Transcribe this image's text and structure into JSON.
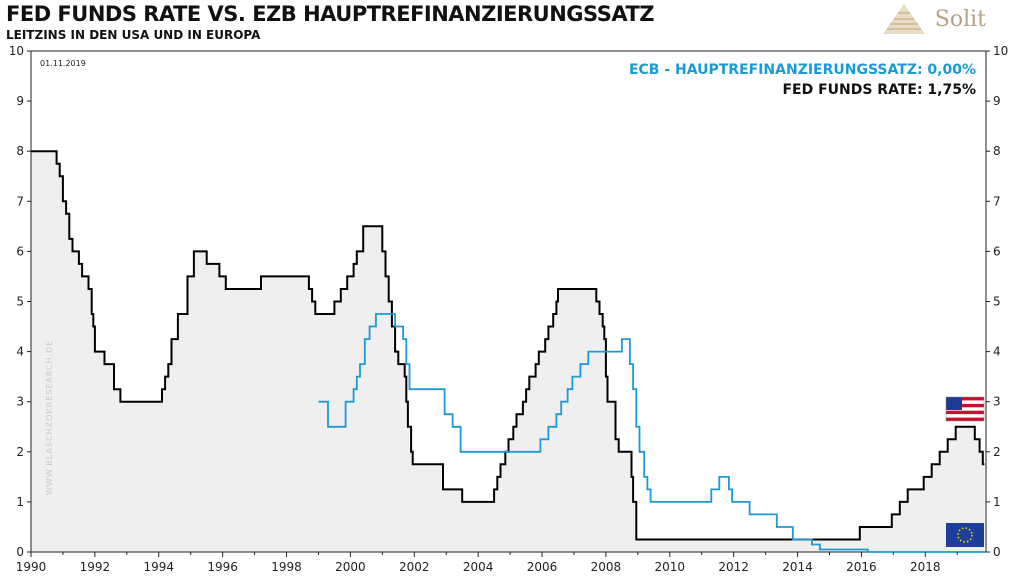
{
  "header": {
    "title": "FED FUNDS RATE  VS.  EZB HAUPTREFINANZIERUNGSSATZ",
    "subtitle": "LEITZINS IN DEN USA UND IN EUROPA",
    "logo_text": "Solit"
  },
  "date_label": "01.11.2019",
  "watermark": "WWW.BLASCHZOKRESEARCH.DE",
  "colors": {
    "fed": "#000000",
    "ecb": "#1a9ad6",
    "fill": "#efefef",
    "logo": "#b5a386"
  },
  "icons": {
    "us": "us-flag-icon",
    "eu": "eu-flag-icon"
  },
  "chart_data": {
    "type": "line",
    "xlim": [
      1990,
      2019.9
    ],
    "ylim": [
      0,
      10
    ],
    "x_ticks": [
      1990,
      1992,
      1994,
      1996,
      1998,
      2000,
      2002,
      2004,
      2006,
      2008,
      2010,
      2012,
      2014,
      2016,
      2018
    ],
    "y_ticks": [
      0,
      1,
      2,
      3,
      4,
      5,
      6,
      7,
      8,
      9,
      10
    ],
    "legend": [
      "ECB - HAUPTREFINANZIERUNGSSATZ: 0,00%",
      "FED FUNDS RATE: 1,75%"
    ],
    "legend_position": "top-right",
    "series": [
      {
        "name": "FED FUNDS RATE",
        "step": true,
        "fill": true,
        "points": [
          [
            1990.0,
            8.0
          ],
          [
            1990.8,
            7.75
          ],
          [
            1990.9,
            7.5
          ],
          [
            1991.0,
            7.0
          ],
          [
            1991.1,
            6.75
          ],
          [
            1991.2,
            6.25
          ],
          [
            1991.3,
            6.0
          ],
          [
            1991.5,
            5.75
          ],
          [
            1991.6,
            5.5
          ],
          [
            1991.8,
            5.25
          ],
          [
            1991.9,
            4.75
          ],
          [
            1991.95,
            4.5
          ],
          [
            1992.0,
            4.0
          ],
          [
            1992.3,
            3.75
          ],
          [
            1992.6,
            3.25
          ],
          [
            1992.8,
            3.0
          ],
          [
            1994.1,
            3.25
          ],
          [
            1994.2,
            3.5
          ],
          [
            1994.3,
            3.75
          ],
          [
            1994.4,
            4.25
          ],
          [
            1994.6,
            4.75
          ],
          [
            1994.9,
            5.5
          ],
          [
            1995.1,
            6.0
          ],
          [
            1995.5,
            5.75
          ],
          [
            1995.9,
            5.5
          ],
          [
            1996.1,
            5.25
          ],
          [
            1997.2,
            5.5
          ],
          [
            1998.7,
            5.25
          ],
          [
            1998.8,
            5.0
          ],
          [
            1998.9,
            4.75
          ],
          [
            1999.5,
            5.0
          ],
          [
            1999.7,
            5.25
          ],
          [
            1999.9,
            5.5
          ],
          [
            2000.1,
            5.75
          ],
          [
            2000.2,
            6.0
          ],
          [
            2000.4,
            6.5
          ],
          [
            2001.0,
            6.0
          ],
          [
            2001.1,
            5.5
          ],
          [
            2001.2,
            5.0
          ],
          [
            2001.3,
            4.5
          ],
          [
            2001.4,
            4.0
          ],
          [
            2001.5,
            3.75
          ],
          [
            2001.7,
            3.5
          ],
          [
            2001.75,
            3.0
          ],
          [
            2001.8,
            2.5
          ],
          [
            2001.9,
            2.0
          ],
          [
            2001.95,
            1.75
          ],
          [
            2002.9,
            1.25
          ],
          [
            2003.5,
            1.0
          ],
          [
            2004.5,
            1.25
          ],
          [
            2004.6,
            1.5
          ],
          [
            2004.7,
            1.75
          ],
          [
            2004.85,
            2.0
          ],
          [
            2004.95,
            2.25
          ],
          [
            2005.1,
            2.5
          ],
          [
            2005.2,
            2.75
          ],
          [
            2005.4,
            3.0
          ],
          [
            2005.5,
            3.25
          ],
          [
            2005.6,
            3.5
          ],
          [
            2005.8,
            3.75
          ],
          [
            2005.9,
            4.0
          ],
          [
            2006.1,
            4.25
          ],
          [
            2006.2,
            4.5
          ],
          [
            2006.35,
            4.75
          ],
          [
            2006.45,
            5.0
          ],
          [
            2006.5,
            5.25
          ],
          [
            2007.7,
            5.0
          ],
          [
            2007.8,
            4.75
          ],
          [
            2007.9,
            4.5
          ],
          [
            2007.95,
            4.25
          ],
          [
            2008.0,
            3.5
          ],
          [
            2008.05,
            3.0
          ],
          [
            2008.3,
            2.25
          ],
          [
            2008.4,
            2.0
          ],
          [
            2008.8,
            1.5
          ],
          [
            2008.85,
            1.0
          ],
          [
            2008.95,
            0.25
          ],
          [
            2015.95,
            0.5
          ],
          [
            2016.95,
            0.75
          ],
          [
            2017.2,
            1.0
          ],
          [
            2017.45,
            1.25
          ],
          [
            2017.95,
            1.5
          ],
          [
            2018.2,
            1.75
          ],
          [
            2018.45,
            2.0
          ],
          [
            2018.7,
            2.25
          ],
          [
            2018.95,
            2.5
          ],
          [
            2019.55,
            2.25
          ],
          [
            2019.7,
            2.0
          ],
          [
            2019.8,
            1.75
          ],
          [
            2019.85,
            1.75
          ]
        ]
      },
      {
        "name": "ECB - HAUPTREFINANZIERUNGSSATZ",
        "step": true,
        "fill": false,
        "points": [
          [
            1999.0,
            3.0
          ],
          [
            1999.3,
            2.5
          ],
          [
            1999.85,
            3.0
          ],
          [
            2000.1,
            3.25
          ],
          [
            2000.2,
            3.5
          ],
          [
            2000.3,
            3.75
          ],
          [
            2000.45,
            4.25
          ],
          [
            2000.6,
            4.5
          ],
          [
            2000.8,
            4.75
          ],
          [
            2001.4,
            4.5
          ],
          [
            2001.65,
            4.25
          ],
          [
            2001.75,
            3.75
          ],
          [
            2001.85,
            3.25
          ],
          [
            2002.95,
            2.75
          ],
          [
            2003.2,
            2.5
          ],
          [
            2003.45,
            2.0
          ],
          [
            2005.95,
            2.25
          ],
          [
            2006.2,
            2.5
          ],
          [
            2006.45,
            2.75
          ],
          [
            2006.6,
            3.0
          ],
          [
            2006.8,
            3.25
          ],
          [
            2006.95,
            3.5
          ],
          [
            2007.2,
            3.75
          ],
          [
            2007.45,
            4.0
          ],
          [
            2008.5,
            4.25
          ],
          [
            2008.75,
            3.75
          ],
          [
            2008.85,
            3.25
          ],
          [
            2008.95,
            2.5
          ],
          [
            2009.05,
            2.0
          ],
          [
            2009.2,
            1.5
          ],
          [
            2009.3,
            1.25
          ],
          [
            2009.4,
            1.0
          ],
          [
            2011.3,
            1.25
          ],
          [
            2011.55,
            1.5
          ],
          [
            2011.85,
            1.25
          ],
          [
            2011.95,
            1.0
          ],
          [
            2012.5,
            0.75
          ],
          [
            2013.35,
            0.5
          ],
          [
            2013.85,
            0.25
          ],
          [
            2014.45,
            0.15
          ],
          [
            2014.7,
            0.05
          ],
          [
            2016.2,
            0.0
          ],
          [
            2019.85,
            0.0
          ]
        ]
      }
    ]
  }
}
